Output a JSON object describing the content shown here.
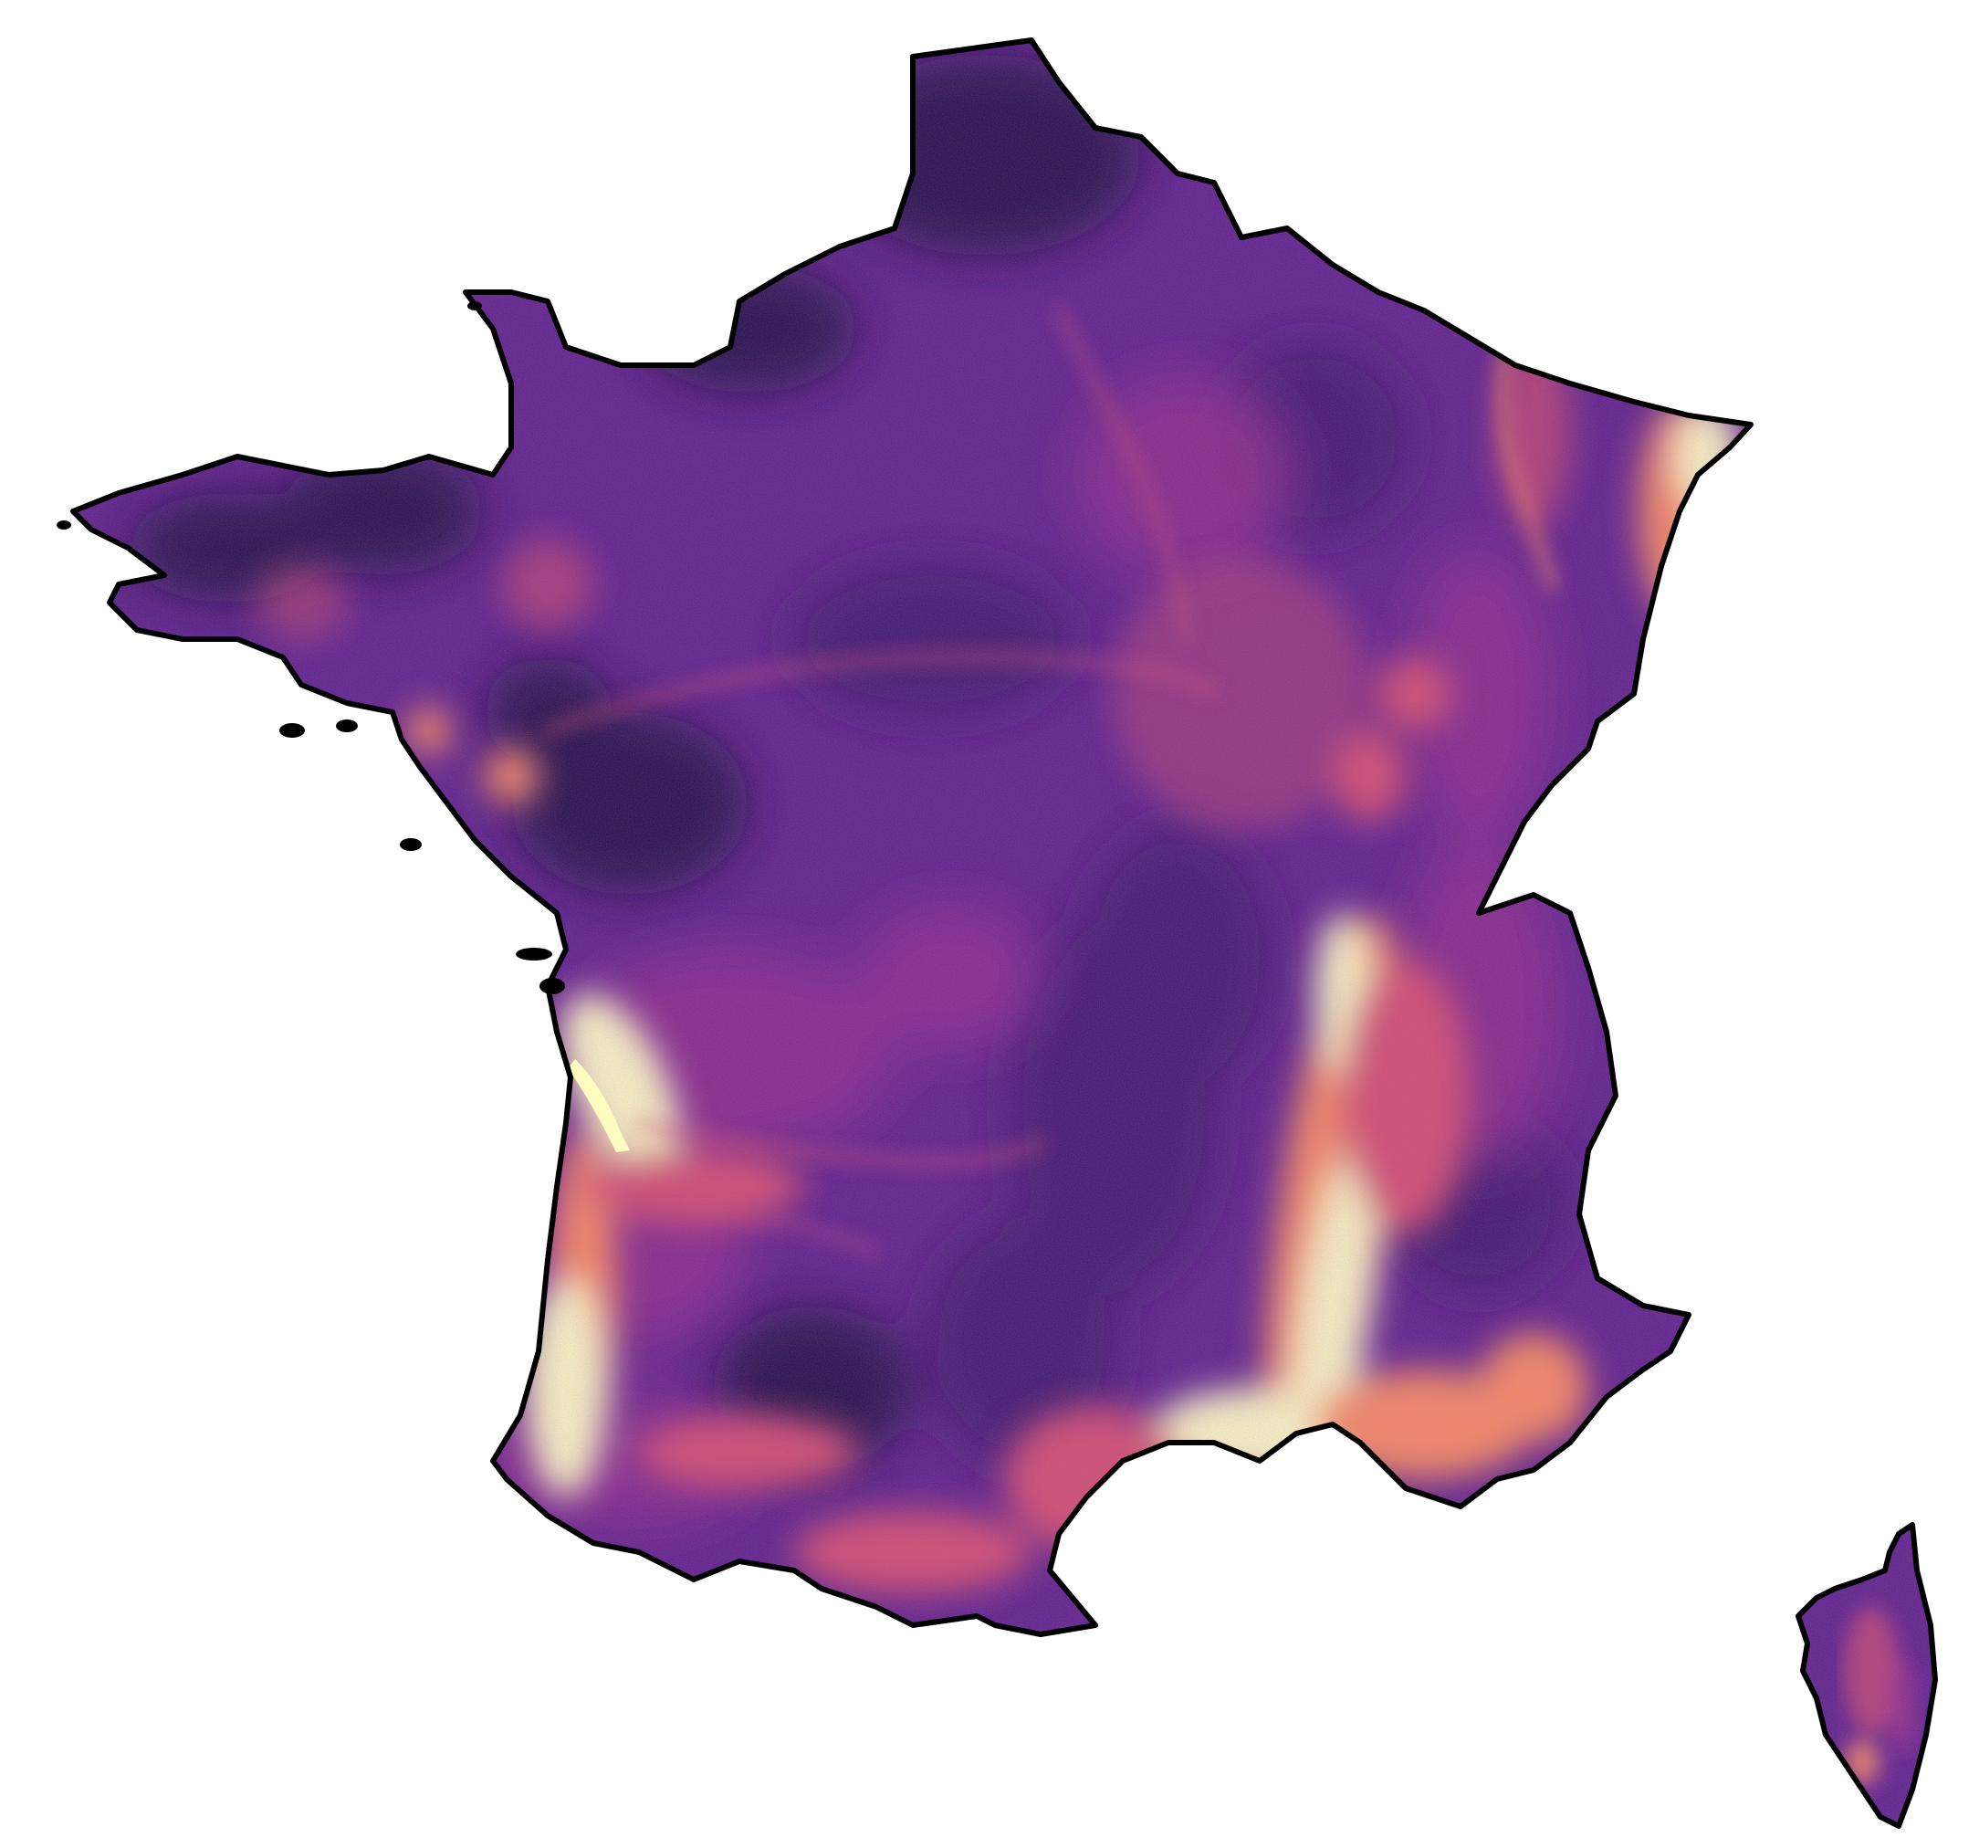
{
  "map": {
    "colormap": "magma",
    "colors": {
      "background": "#ffffff",
      "outline": "#000000",
      "lowest": "#1c0f3f",
      "low": "#3a1468",
      "mid_low": "#5a1f86",
      "mid": "#8a2a86",
      "mid_high": "#d14d6a",
      "high": "#f68a5c",
      "highest": "#fcfdbf"
    },
    "regions": [
      "mainland-france",
      "corsica"
    ],
    "bright_zones": [
      "alsace-rhine",
      "rhone-valley",
      "provence-coast",
      "gironde-estuary",
      "aquitaine-coast",
      "garonne-valley",
      "pyrenees-foothills",
      "alps",
      "loire-estuary"
    ],
    "dark_zones": [
      "nord",
      "brittany-interior",
      "maine-anjou",
      "massif-central",
      "lannemezan-plateau",
      "lorraine-plateau"
    ]
  }
}
